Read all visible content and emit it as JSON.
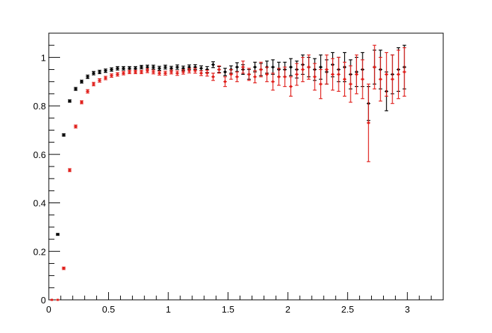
{
  "chart_data": {
    "type": "scatter",
    "title": "",
    "xlabel": "",
    "ylabel": "",
    "xlim": [
      0,
      3.3
    ],
    "ylim": [
      0,
      1.1
    ],
    "grid": false,
    "error_bars": true,
    "x_ticks": [
      {
        "value": 0,
        "label": "0"
      },
      {
        "value": 0.5,
        "label": "0.5"
      },
      {
        "value": 1,
        "label": "1"
      },
      {
        "value": 1.5,
        "label": "1.5"
      },
      {
        "value": 2,
        "label": "2"
      },
      {
        "value": 2.5,
        "label": "2.5"
      },
      {
        "value": 3,
        "label": "3"
      }
    ],
    "y_ticks": [
      {
        "value": 0,
        "label": "0"
      },
      {
        "value": 0.2,
        "label": "0.2"
      },
      {
        "value": 0.4,
        "label": "0.4"
      },
      {
        "value": 0.6,
        "label": "0.6"
      },
      {
        "value": 0.8,
        "label": "0.8"
      },
      {
        "value": 1,
        "label": "1"
      }
    ],
    "series": [
      {
        "color": "#000000",
        "bin_half_width": 0.015,
        "x": [
          0.025,
          0.075,
          0.125,
          0.175,
          0.225,
          0.275,
          0.325,
          0.375,
          0.425,
          0.475,
          0.525,
          0.575,
          0.625,
          0.675,
          0.725,
          0.775,
          0.825,
          0.875,
          0.925,
          0.975,
          1.025,
          1.075,
          1.125,
          1.175,
          1.225,
          1.275,
          1.325,
          1.375,
          1.425,
          1.475,
          1.525,
          1.575,
          1.625,
          1.675,
          1.725,
          1.775,
          1.825,
          1.875,
          1.925,
          1.975,
          2.025,
          2.075,
          2.125,
          2.175,
          2.225,
          2.275,
          2.325,
          2.375,
          2.425,
          2.475,
          2.525,
          2.575,
          2.625,
          2.675,
          2.725,
          2.775,
          2.825,
          2.875,
          2.925,
          2.975
        ],
        "y": [
          0.0,
          0.27,
          0.68,
          0.82,
          0.87,
          0.9,
          0.92,
          0.935,
          0.94,
          0.945,
          0.95,
          0.955,
          0.955,
          0.955,
          0.955,
          0.96,
          0.96,
          0.96,
          0.955,
          0.96,
          0.955,
          0.96,
          0.955,
          0.96,
          0.96,
          0.955,
          0.95,
          0.97,
          0.95,
          0.94,
          0.95,
          0.96,
          0.95,
          0.93,
          0.96,
          0.95,
          0.96,
          0.96,
          0.95,
          0.95,
          0.96,
          0.95,
          0.97,
          0.96,
          0.95,
          0.96,
          0.94,
          0.97,
          0.95,
          0.96,
          0.93,
          0.94,
          0.95,
          0.81,
          0.96,
          0.95,
          0.86,
          0.93,
          0.95,
          0.96
        ],
        "err": [
          0.0,
          0.004,
          0.005,
          0.005,
          0.006,
          0.006,
          0.007,
          0.007,
          0.007,
          0.007,
          0.007,
          0.007,
          0.007,
          0.007,
          0.007,
          0.007,
          0.008,
          0.008,
          0.008,
          0.008,
          0.008,
          0.009,
          0.009,
          0.009,
          0.01,
          0.01,
          0.012,
          0.012,
          0.012,
          0.015,
          0.015,
          0.018,
          0.02,
          0.02,
          0.02,
          0.025,
          0.025,
          0.03,
          0.03,
          0.03,
          0.035,
          0.035,
          0.04,
          0.04,
          0.045,
          0.05,
          0.05,
          0.05,
          0.05,
          0.06,
          0.06,
          0.06,
          0.07,
          0.07,
          0.07,
          0.08,
          0.08,
          0.08,
          0.09,
          0.09
        ]
      },
      {
        "color": "#e0201c",
        "bin_half_width": 0.015,
        "x": [
          0.025,
          0.075,
          0.125,
          0.175,
          0.225,
          0.275,
          0.325,
          0.375,
          0.425,
          0.475,
          0.525,
          0.575,
          0.625,
          0.675,
          0.725,
          0.775,
          0.825,
          0.875,
          0.925,
          0.975,
          1.025,
          1.075,
          1.125,
          1.175,
          1.225,
          1.275,
          1.325,
          1.375,
          1.425,
          1.475,
          1.525,
          1.575,
          1.625,
          1.675,
          1.725,
          1.775,
          1.825,
          1.875,
          1.925,
          1.975,
          2.025,
          2.075,
          2.125,
          2.175,
          2.225,
          2.275,
          2.325,
          2.375,
          2.425,
          2.475,
          2.525,
          2.575,
          2.625,
          2.675,
          2.725,
          2.775,
          2.825,
          2.875,
          2.925,
          2.975
        ],
        "y": [
          0.0,
          0.0,
          0.13,
          0.535,
          0.715,
          0.815,
          0.86,
          0.89,
          0.905,
          0.915,
          0.925,
          0.93,
          0.935,
          0.94,
          0.94,
          0.94,
          0.945,
          0.94,
          0.935,
          0.935,
          0.94,
          0.935,
          0.94,
          0.945,
          0.945,
          0.935,
          0.935,
          0.92,
          0.95,
          0.9,
          0.93,
          0.92,
          0.96,
          0.93,
          0.92,
          0.95,
          0.93,
          0.9,
          0.92,
          0.92,
          0.88,
          0.93,
          0.95,
          0.96,
          0.92,
          0.89,
          0.95,
          0.93,
          0.93,
          0.91,
          0.89,
          0.93,
          0.91,
          0.73,
          0.96,
          0.91,
          0.93,
          0.91,
          0.93,
          0.94
        ],
        "err": [
          0.0,
          0.0,
          0.005,
          0.006,
          0.006,
          0.006,
          0.007,
          0.007,
          0.007,
          0.007,
          0.007,
          0.007,
          0.007,
          0.007,
          0.007,
          0.007,
          0.008,
          0.008,
          0.008,
          0.008,
          0.008,
          0.009,
          0.009,
          0.009,
          0.01,
          0.01,
          0.012,
          0.015,
          0.015,
          0.02,
          0.02,
          0.02,
          0.025,
          0.025,
          0.025,
          0.03,
          0.03,
          0.035,
          0.035,
          0.04,
          0.04,
          0.045,
          0.05,
          0.05,
          0.055,
          0.06,
          0.06,
          0.065,
          0.07,
          0.07,
          0.075,
          0.08,
          0.08,
          0.16,
          0.09,
          0.09,
          0.09,
          0.1,
          0.1,
          0.1
        ]
      }
    ]
  }
}
